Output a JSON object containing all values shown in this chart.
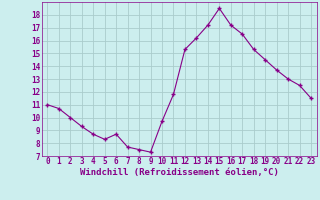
{
  "x": [
    0,
    1,
    2,
    3,
    4,
    5,
    6,
    7,
    8,
    9,
    10,
    11,
    12,
    13,
    14,
    15,
    16,
    17,
    18,
    19,
    20,
    21,
    22,
    23
  ],
  "y": [
    11.0,
    10.7,
    10.0,
    9.3,
    8.7,
    8.3,
    8.7,
    7.7,
    7.5,
    7.3,
    9.7,
    11.8,
    15.3,
    16.2,
    17.2,
    18.5,
    17.2,
    16.5,
    15.3,
    14.5,
    13.7,
    13.0,
    12.5,
    11.5
  ],
  "line_color": "#880088",
  "marker": "+",
  "bg_color": "#cceeee",
  "grid_color": "#aacccc",
  "xlabel": "Windchill (Refroidissement éolien,°C)",
  "xlabel_color": "#880088",
  "tick_color": "#880088",
  "ylim": [
    7,
    19
  ],
  "xlim": [
    -0.5,
    23.5
  ],
  "yticks": [
    7,
    8,
    9,
    10,
    11,
    12,
    13,
    14,
    15,
    16,
    17,
    18
  ],
  "xticks": [
    0,
    1,
    2,
    3,
    4,
    5,
    6,
    7,
    8,
    9,
    10,
    11,
    12,
    13,
    14,
    15,
    16,
    17,
    18,
    19,
    20,
    21,
    22,
    23
  ],
  "xtick_labels": [
    "0",
    "1",
    "2",
    "3",
    "4",
    "5",
    "6",
    "7",
    "8",
    "9",
    "10",
    "11",
    "12",
    "13",
    "14",
    "15",
    "16",
    "17",
    "18",
    "19",
    "20",
    "21",
    "22",
    "23"
  ],
  "ytick_labels": [
    "7",
    "8",
    "9",
    "10",
    "11",
    "12",
    "13",
    "14",
    "15",
    "16",
    "17",
    "18"
  ],
  "tick_fontsize": 5.5,
  "xlabel_fontsize": 6.5,
  "marker_size": 3.5,
  "linewidth": 0.8
}
